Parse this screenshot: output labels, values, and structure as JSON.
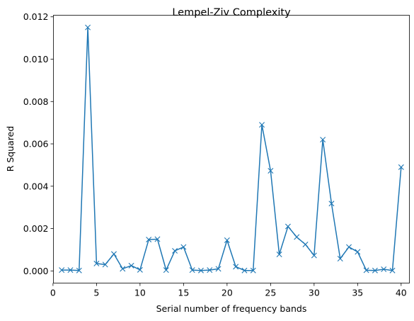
{
  "chart_data": {
    "type": "line",
    "title": "Lempel-Ziv Complexity",
    "xlabel": "Serial number of frequency bands",
    "ylabel": "R Squared",
    "xlim": [
      0.05,
      40.95
    ],
    "ylim": [
      -0.000575,
      0.012075
    ],
    "xticks": [
      0,
      5,
      10,
      15,
      20,
      25,
      30,
      35,
      40
    ],
    "xtick_labels": [
      "0",
      "5",
      "10",
      "15",
      "20",
      "25",
      "30",
      "35",
      "40"
    ],
    "yticks": [
      0.0,
      0.002,
      0.004,
      0.006,
      0.008,
      0.01,
      0.012
    ],
    "ytick_labels": [
      "0.000",
      "0.002",
      "0.004",
      "0.006",
      "0.008",
      "0.010",
      "0.012"
    ],
    "grid": false,
    "marker": "x",
    "color": "#1f77b4",
    "series": [
      {
        "x": [
          1,
          2,
          3,
          4,
          5,
          6,
          7,
          8,
          9,
          10,
          11,
          12,
          13,
          14,
          15,
          16,
          17,
          18,
          19,
          20,
          21,
          22,
          23,
          24,
          25,
          26,
          27,
          28,
          29,
          30,
          31,
          32,
          33,
          34,
          35,
          36,
          37,
          38,
          39,
          40
        ],
        "values": [
          4e-05,
          4e-05,
          2e-05,
          0.0115,
          0.00035,
          0.0003,
          0.0008,
          0.0001,
          0.00025,
          5e-05,
          0.00148,
          0.0015,
          4e-05,
          0.00095,
          0.00113,
          4e-05,
          2e-05,
          4e-05,
          0.0001,
          0.00145,
          0.0002,
          2e-05,
          2e-05,
          0.0069,
          0.00473,
          0.00078,
          0.0021,
          0.0016,
          0.00125,
          0.00073,
          0.0062,
          0.00318,
          0.00058,
          0.00113,
          0.0009,
          3e-05,
          2e-05,
          8e-05,
          2e-05,
          0.0049
        ]
      }
    ]
  }
}
